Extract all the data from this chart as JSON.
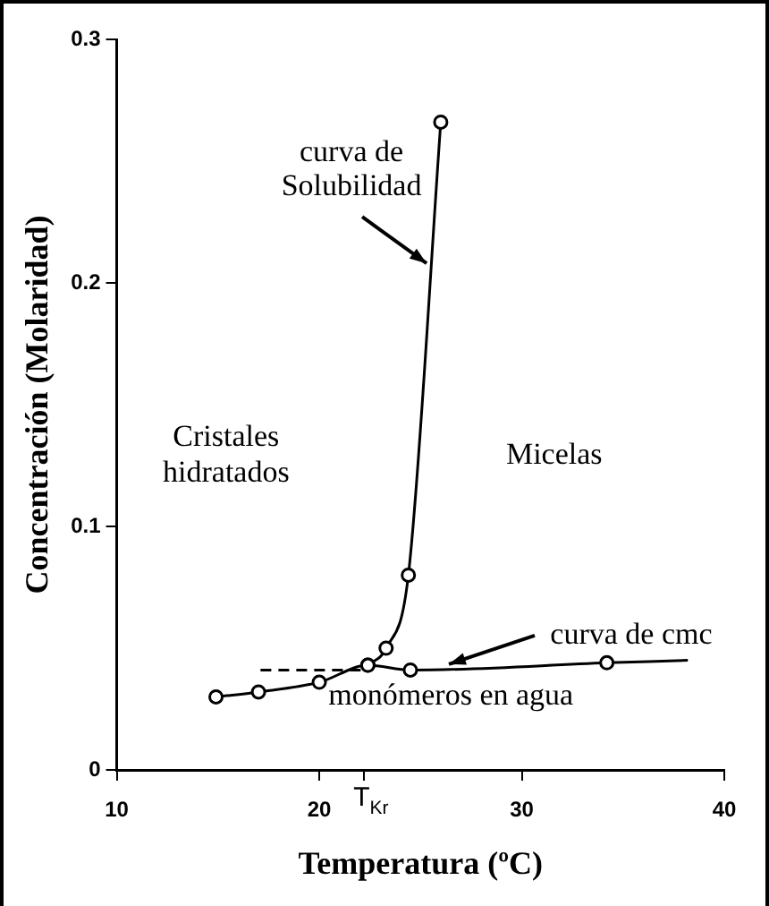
{
  "chart_data": {
    "type": "line",
    "xlabel": "Temperatura (ºC)",
    "ylabel": "Concentración (Molaridad)",
    "xlim": [
      10,
      40
    ],
    "ylim": [
      0,
      0.3
    ],
    "xticks": [
      10,
      20,
      {
        "value": 22.2,
        "label": "T$_{Kr}$"
      },
      30,
      40
    ],
    "yticks": [
      0,
      0.1,
      0.2,
      0.3
    ],
    "grid": false,
    "legend": false,
    "series": [
      {
        "color": "#000000",
        "marker": "circle",
        "line_style": "solid",
        "x": [
          14.9,
          17.0,
          20.0,
          22.4,
          24.5,
          34.2
        ],
        "values": [
          0.03,
          0.032,
          0.036,
          0.043,
          0.041,
          0.044
        ]
      },
      {
        "color": "#000000",
        "marker": "none",
        "line_style": "solid",
        "x": [
          34.2,
          38.2
        ],
        "values": [
          0.044,
          0.045
        ]
      },
      {
        "color": "#000000",
        "marker": "none",
        "line_style": "dashed",
        "x": [
          17.1,
          22.4
        ],
        "values": [
          0.041,
          0.041
        ]
      },
      {
        "color": "#000000",
        "marker": "circle",
        "line_style": "solid",
        "x": [
          22.4,
          23.3,
          24.4,
          26.0
        ],
        "values": [
          0.043,
          0.05,
          0.08,
          0.266
        ]
      }
    ],
    "annotations": [
      {
        "text": "curva de\nSolubilidad",
        "x": 25.3,
        "y": 0.208
      },
      {
        "text": "curva de cmc",
        "x": 26.4,
        "y": 0.0434
      },
      "Cristales\nhidratados",
      "Micelas",
      "monómeros en agua"
    ]
  }
}
